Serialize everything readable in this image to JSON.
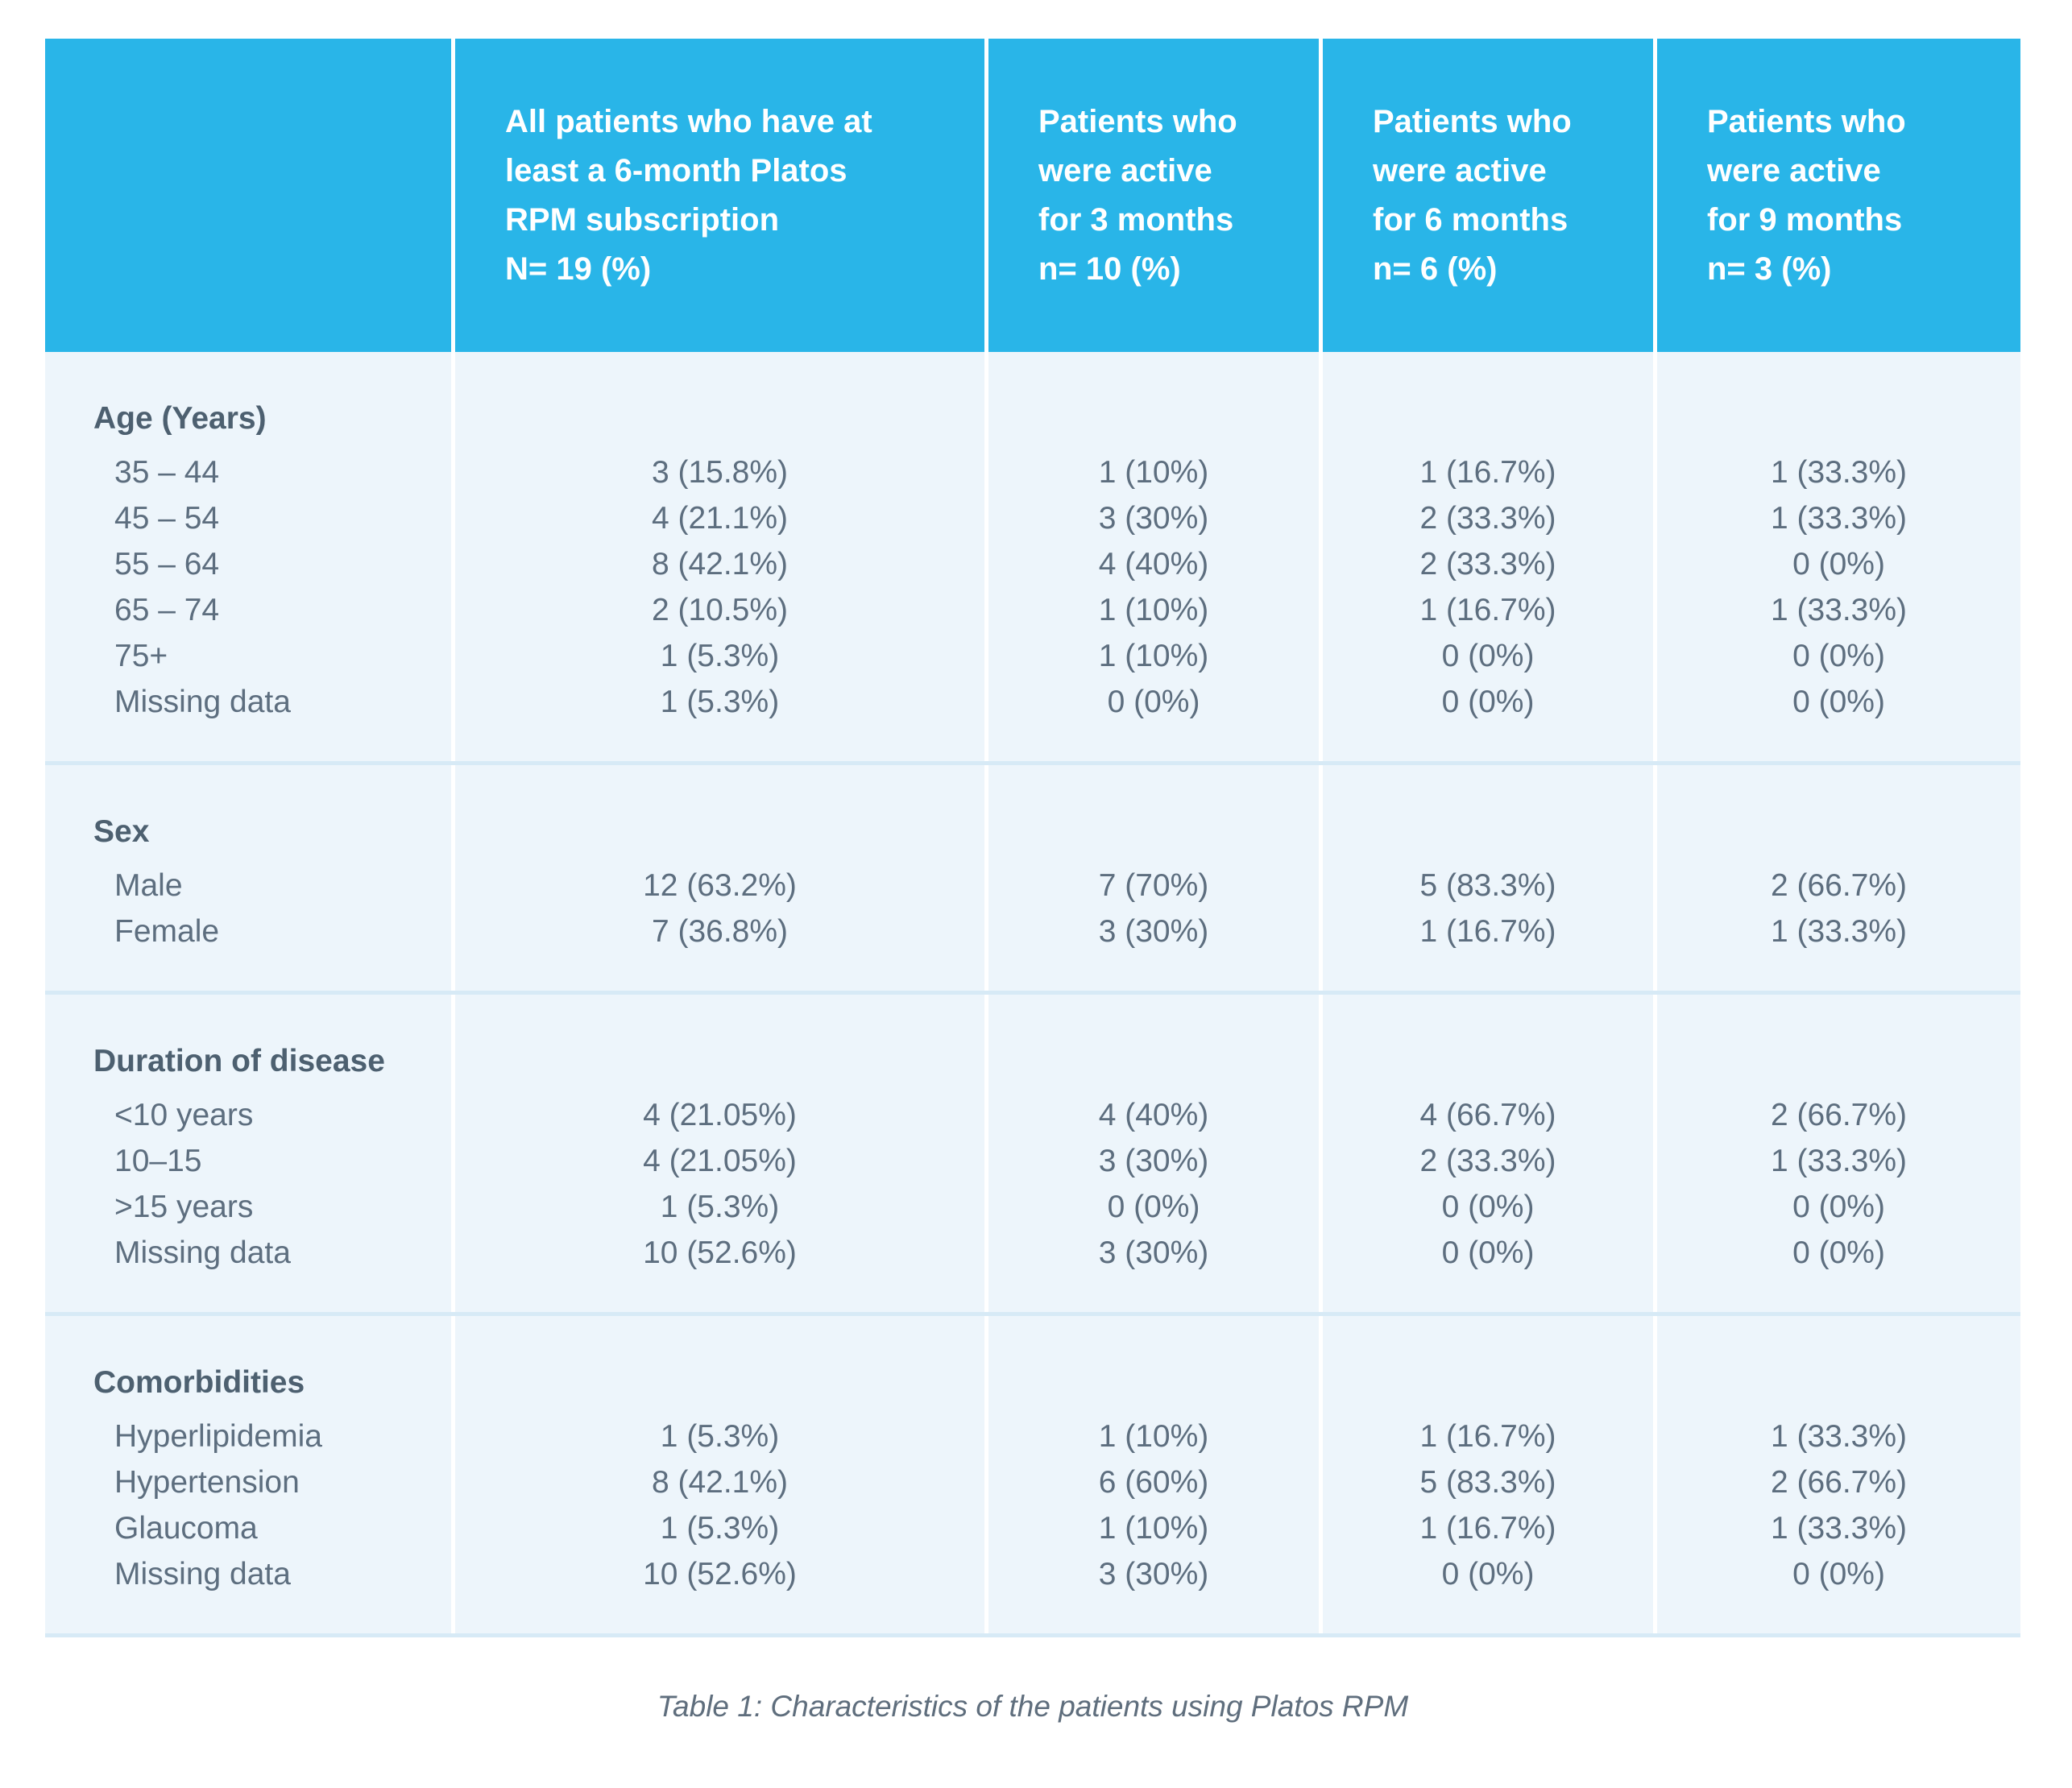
{
  "colors": {
    "header_bg": "#29b5e8",
    "header_text": "#ffffff",
    "body_bg": "#edf5fb",
    "section_divider": "#d7eaf6",
    "column_gap": "#ffffff",
    "body_text": "#5d6e7f",
    "title_text": "#4d6070",
    "caption_text": "#5f6e7d"
  },
  "table": {
    "header": {
      "empty": "",
      "columns": [
        {
          "lines": [
            "All patients who have at",
            "least a 6-month Platos",
            "RPM subscription",
            "N= 19 (%)"
          ]
        },
        {
          "lines": [
            "Patients who",
            "were active",
            "for 3 months",
            "n= 10 (%)"
          ]
        },
        {
          "lines": [
            "Patients who",
            "were active",
            "for 6 months",
            "n= 6 (%)"
          ]
        },
        {
          "lines": [
            "Patients who",
            "were active",
            "for 9 months",
            "n= 3 (%)"
          ]
        }
      ]
    },
    "sections": [
      {
        "title": "Age (Years)",
        "rows": [
          {
            "label": "35 – 44",
            "values": [
              "3 (15.8%)",
              "1 (10%)",
              "1 (16.7%)",
              "1 (33.3%)"
            ]
          },
          {
            "label": "45 – 54",
            "values": [
              "4 (21.1%)",
              "3 (30%)",
              "2 (33.3%)",
              "1 (33.3%)"
            ]
          },
          {
            "label": "55 – 64",
            "values": [
              "8 (42.1%)",
              "4 (40%)",
              "2 (33.3%)",
              "0 (0%)"
            ]
          },
          {
            "label": "65 – 74",
            "values": [
              "2 (10.5%)",
              "1 (10%)",
              "1 (16.7%)",
              "1 (33.3%)"
            ]
          },
          {
            "label": "75+",
            "values": [
              "1 (5.3%)",
              "1 (10%)",
              "0 (0%)",
              "0 (0%)"
            ]
          },
          {
            "label": "Missing data",
            "values": [
              "1 (5.3%)",
              "0 (0%)",
              "0 (0%)",
              "0 (0%)"
            ]
          }
        ]
      },
      {
        "title": "Sex",
        "rows": [
          {
            "label": "Male",
            "values": [
              "12 (63.2%)",
              "7 (70%)",
              "5 (83.3%)",
              "2 (66.7%)"
            ]
          },
          {
            "label": "Female",
            "values": [
              "7 (36.8%)",
              "3 (30%)",
              "1 (16.7%)",
              "1 (33.3%)"
            ]
          }
        ]
      },
      {
        "title": "Duration of disease",
        "rows": [
          {
            "label": "<10 years",
            "values": [
              "4 (21.05%)",
              "4 (40%)",
              "4 (66.7%)",
              "2 (66.7%)"
            ]
          },
          {
            "label": "10–15",
            "values": [
              "4 (21.05%)",
              "3 (30%)",
              "2 (33.3%)",
              "1 (33.3%)"
            ]
          },
          {
            "label": ">15 years",
            "values": [
              "1 (5.3%)",
              "0 (0%)",
              "0 (0%)",
              "0 (0%)"
            ]
          },
          {
            "label": "Missing data",
            "values": [
              "10 (52.6%)",
              "3 (30%)",
              "0 (0%)",
              "0 (0%)"
            ]
          }
        ]
      },
      {
        "title": "Comorbidities",
        "rows": [
          {
            "label": "Hyperlipidemia",
            "values": [
              "1 (5.3%)",
              "1 (10%)",
              "1 (16.7%)",
              "1 (33.3%)"
            ]
          },
          {
            "label": "Hypertension",
            "values": [
              "8 (42.1%)",
              "6 (60%)",
              "5 (83.3%)",
              "2 (66.7%)"
            ]
          },
          {
            "label": "Glaucoma",
            "values": [
              "1 (5.3%)",
              "1 (10%)",
              "1 (16.7%)",
              "1 (33.3%)"
            ]
          },
          {
            "label": "Missing data",
            "values": [
              "10 (52.6%)",
              "3 (30%)",
              "0 (0%)",
              "0 (0%)"
            ]
          }
        ]
      }
    ]
  },
  "caption": "Table 1: Characteristics of the patients using Platos RPM"
}
